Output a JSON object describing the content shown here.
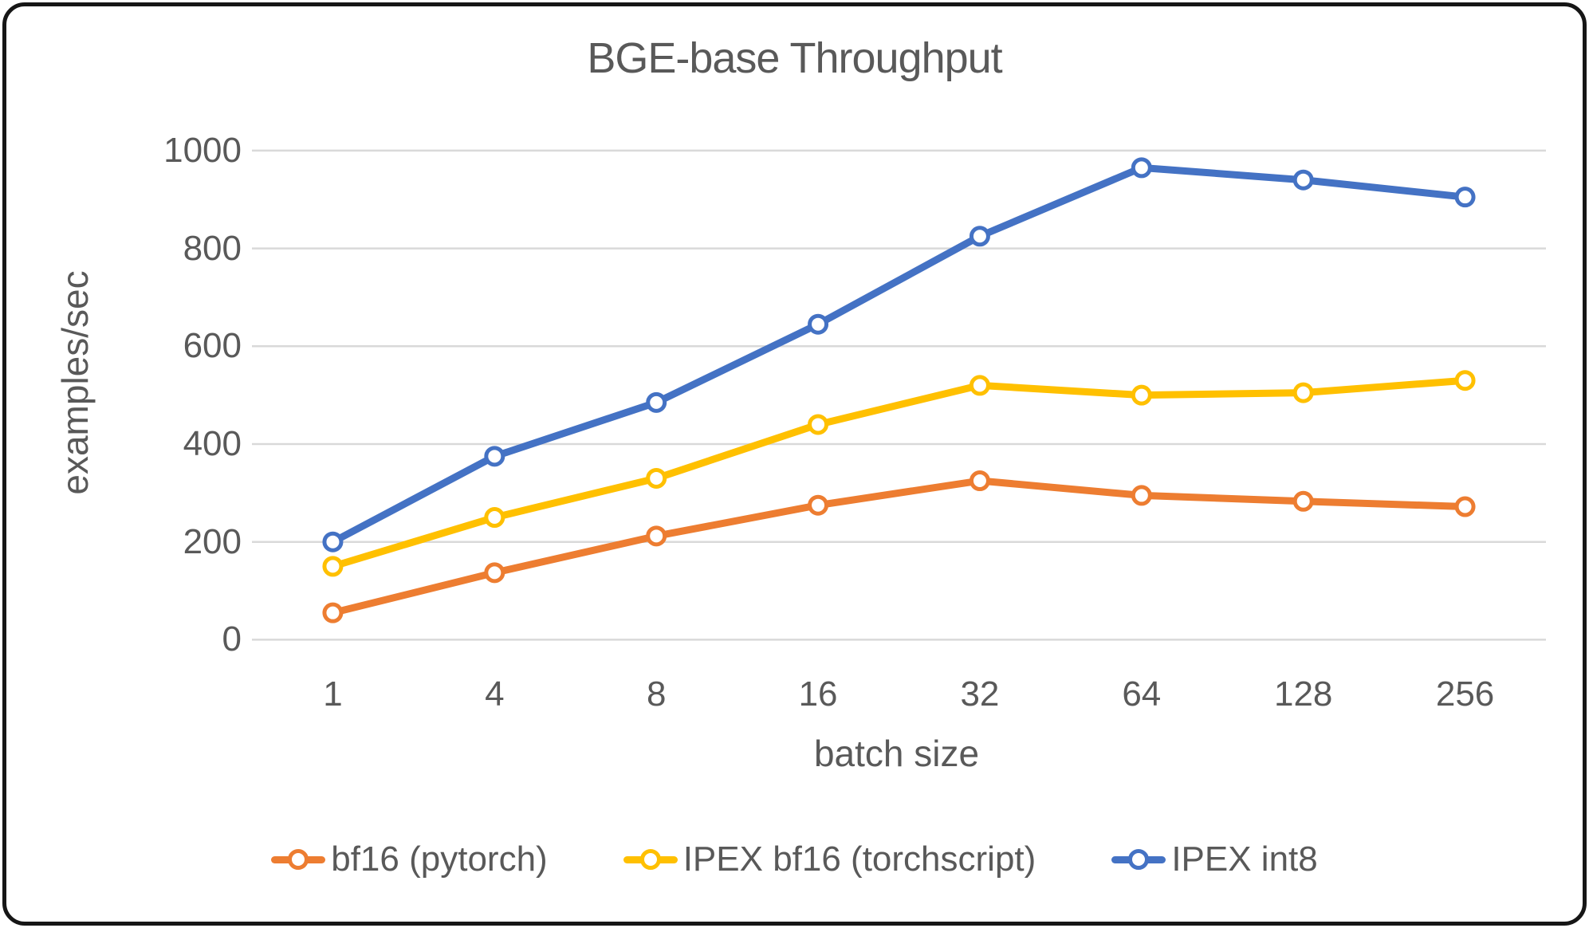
{
  "chart_data": {
    "type": "line",
    "title": "BGE-base Throughput",
    "xlabel": "batch size",
    "ylabel": "examples/sec",
    "categories": [
      "1",
      "4",
      "8",
      "16",
      "32",
      "64",
      "128",
      "256"
    ],
    "series": [
      {
        "name": "bf16 (pytorch)",
        "color": "#ED7D31",
        "values": [
          55,
          137,
          212,
          275,
          325,
          295,
          283,
          272
        ]
      },
      {
        "name": "IPEX bf16 (torchscript)",
        "color": "#FFC000",
        "values": [
          150,
          250,
          330,
          440,
          520,
          500,
          505,
          530
        ]
      },
      {
        "name": "IPEX int8",
        "color": "#4472C4",
        "values": [
          200,
          375,
          485,
          645,
          825,
          965,
          940,
          905
        ]
      }
    ],
    "ylim": [
      0,
      1000
    ],
    "yticks": [
      0,
      200,
      400,
      600,
      800,
      1000
    ],
    "grid": true,
    "legend_position": "bottom"
  },
  "styles": {
    "grid_color": "#D9D9D9",
    "text_color": "#595959",
    "border_color": "#161616",
    "background": "#FFFFFF",
    "marker_fill": "#FFFFFF"
  }
}
